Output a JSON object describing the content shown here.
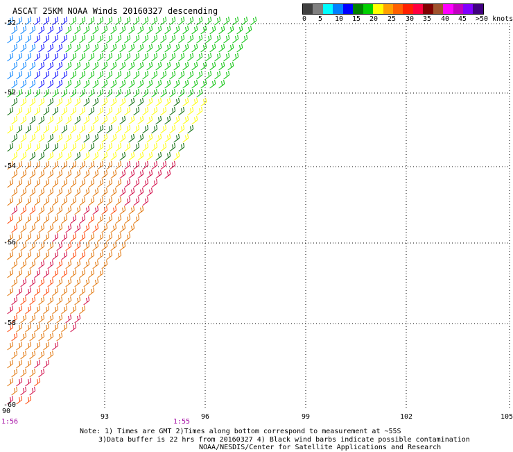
{
  "title": "ASCAT 25KM NOAA Winds 20160327 descending",
  "legend": {
    "unit_label": ">50 knots",
    "ticks": [
      "0",
      "5",
      "10",
      "15",
      "20",
      "25",
      "30",
      "35",
      "40",
      "45"
    ],
    "colors": [
      "#404040",
      "#808080",
      "#00ffff",
      "#0080ff",
      "#0000ff",
      "#008000",
      "#00d000",
      "#ffff00",
      "#ffa000",
      "#ff6000",
      "#ff2000",
      "#ff0040",
      "#800000",
      "#a0522d",
      "#ff00ff",
      "#c000c0",
      "#8000ff",
      "#400080"
    ]
  },
  "axes": {
    "lon_labels": [
      "90",
      "93",
      "96",
      "99",
      "102",
      "105"
    ],
    "lat_labels": [
      "-52",
      "-52",
      "-54",
      "-56",
      "-58",
      "-60"
    ]
  },
  "times": [
    "1:56",
    "1:55"
  ],
  "notes": {
    "line1": "Note: 1) Times are GMT 2)Times along bottom correspond to measurement at ~55S",
    "line2": "3)Data buffer is 22 hrs from 20160327 4) Black wind barbs indicate possible contamination",
    "line3": "NOAA/NESDIS/Center for Satellite Applications and Research"
  },
  "barb_colors": {
    "blue": "#0000ff",
    "light_blue": "#0080ff",
    "dark_green": "#006400",
    "green": "#00c000",
    "yellow": "#ffff00",
    "orange": "#e07000",
    "red_orange": "#ff4000",
    "crimson": "#d00040"
  }
}
